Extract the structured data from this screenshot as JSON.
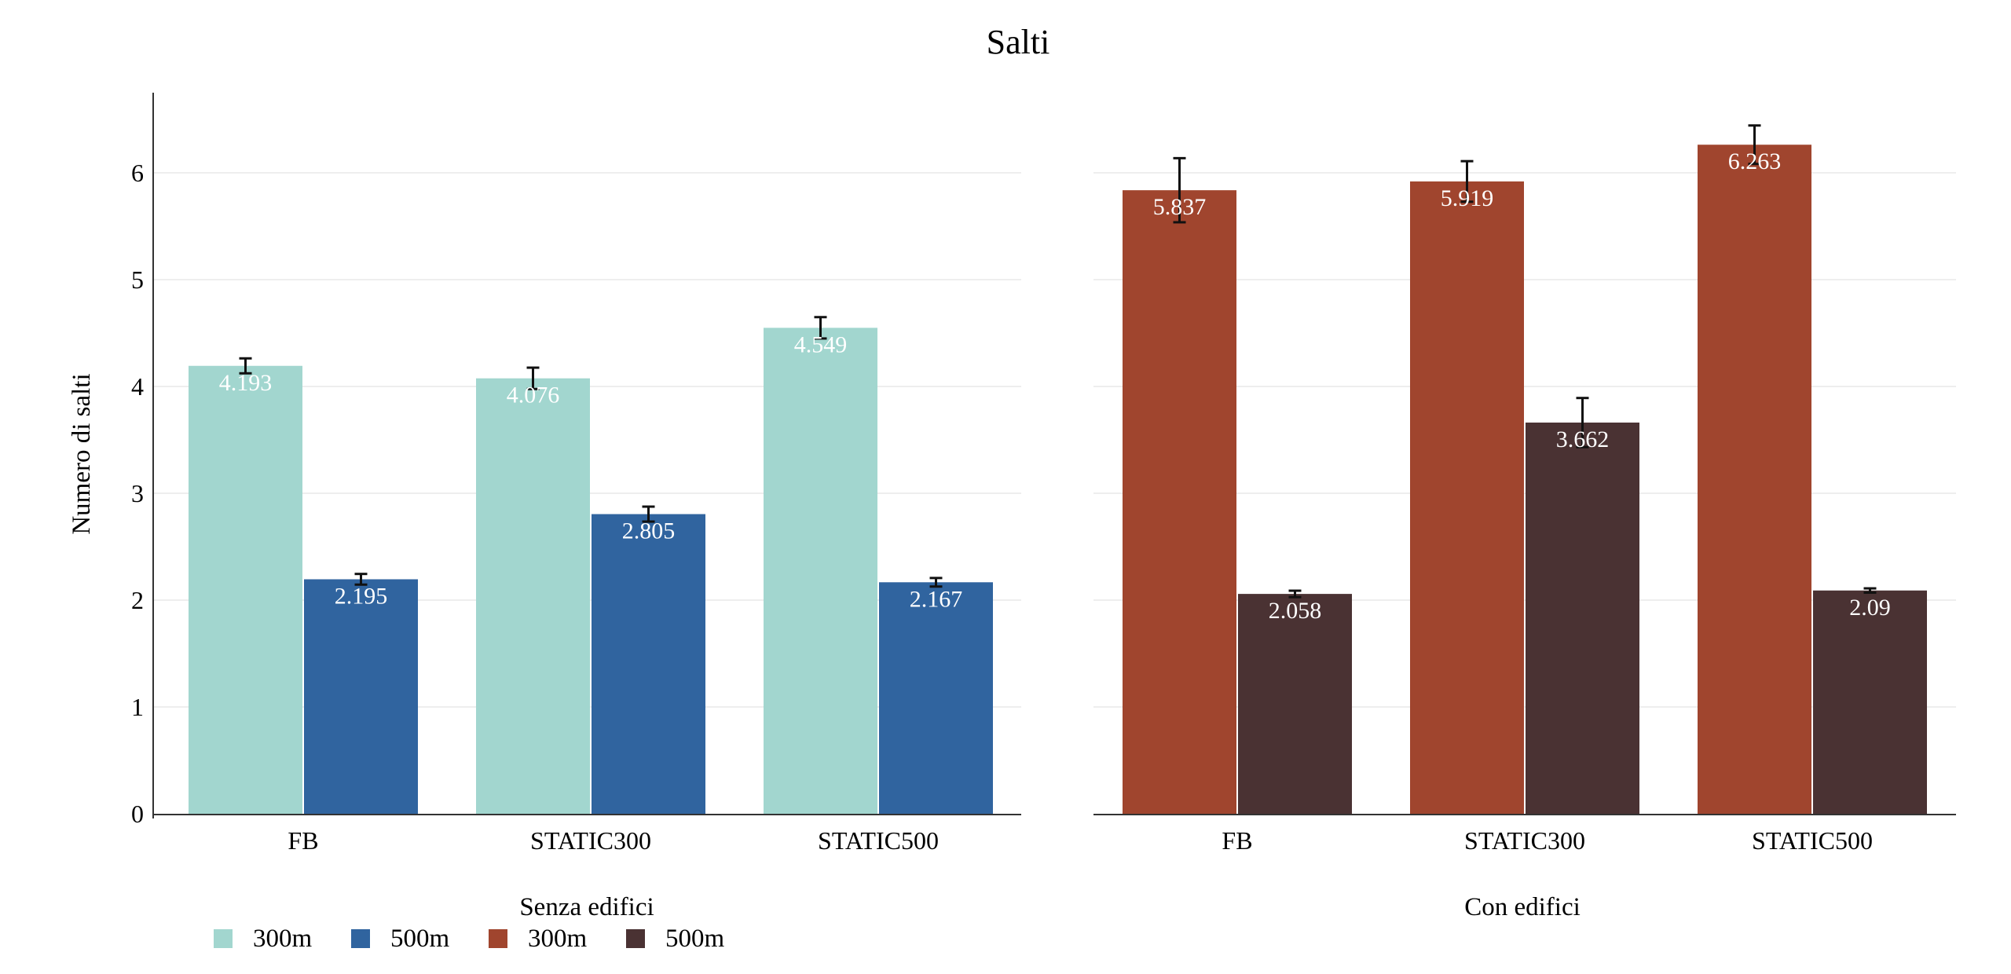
{
  "chart_data": {
    "type": "bar",
    "title": "Salti",
    "ylabel": "Numero di salti",
    "ylim": [
      0,
      6.75
    ],
    "yticks": [
      0,
      1,
      2,
      3,
      4,
      5,
      6
    ],
    "grid": true,
    "legend_position": "bottom-left",
    "panels": [
      {
        "xlabel": "Senza edifici",
        "categories": [
          "FB",
          "STATIC300",
          "STATIC500"
        ],
        "series": [
          {
            "name": "300m",
            "color": "#a2d6cf",
            "values": [
              4.193,
              4.076,
              4.549
            ],
            "labels": [
              "4.193",
              "4.076",
              "4.549"
            ],
            "error": [
              0.07,
              0.1,
              0.1
            ]
          },
          {
            "name": "500m",
            "color": "#30649f",
            "values": [
              2.195,
              2.805,
              2.167
            ],
            "labels": [
              "2.195",
              "2.805",
              "2.167"
            ],
            "error": [
              0.05,
              0.07,
              0.04
            ]
          }
        ]
      },
      {
        "xlabel": "Con edifici",
        "categories": [
          "FB",
          "STATIC300",
          "STATIC500"
        ],
        "series": [
          {
            "name": "300m",
            "color": "#a0452e",
            "values": [
              5.837,
              5.919,
              6.263
            ],
            "labels": [
              "5.837",
              "5.919",
              "6.263"
            ],
            "error": [
              0.3,
              0.19,
              0.18
            ]
          },
          {
            "name": "500m",
            "color": "#4a3233",
            "values": [
              2.058,
              3.662,
              2.09
            ],
            "labels": [
              "2.058",
              "3.662",
              "2.09"
            ],
            "error": [
              0.03,
              0.23,
              0.02
            ]
          }
        ]
      }
    ]
  }
}
